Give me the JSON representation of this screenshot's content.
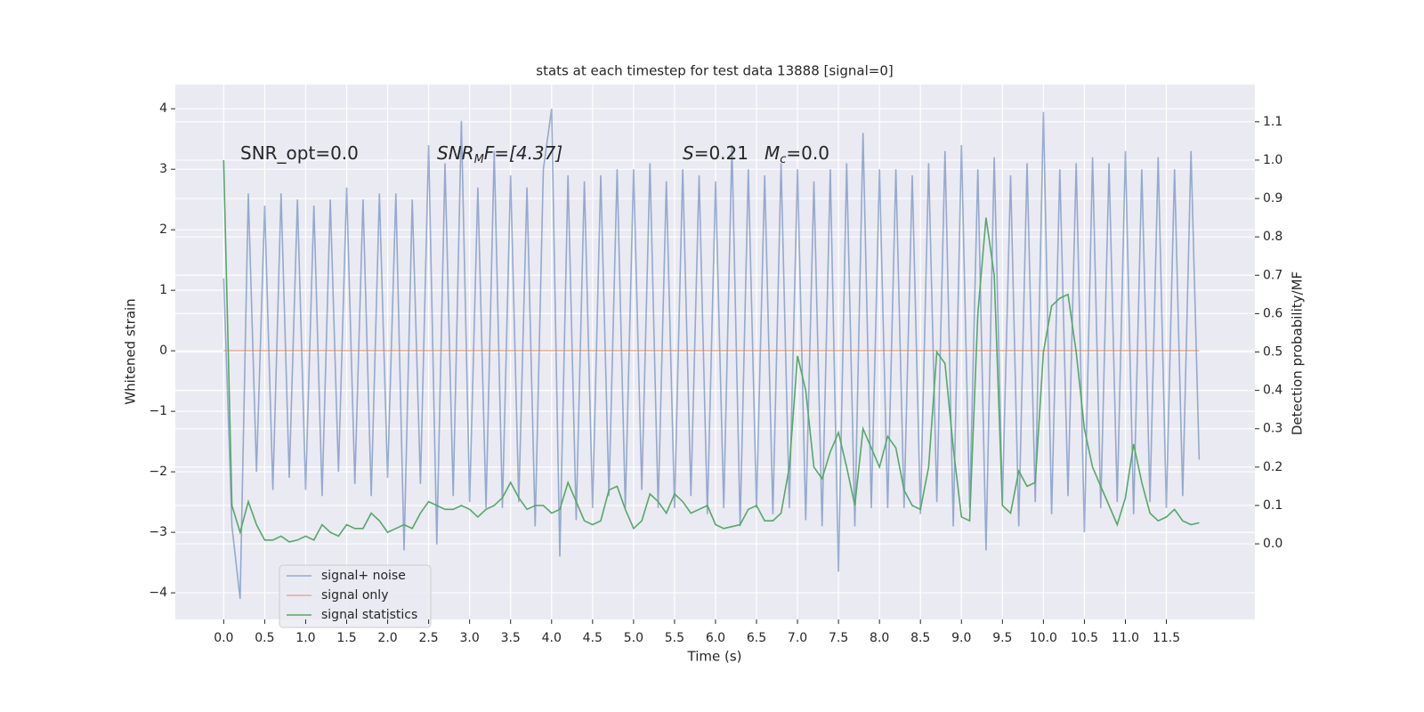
{
  "chart_data": {
    "type": "line",
    "title": "stats at each timestep for test data 13888 [signal=0]",
    "xlabel": "Time (s)",
    "ylabel": "Whitened strain",
    "y2label": "Detection probability/MF",
    "annotations": [
      [
        "SNR_opt=0.0"
      ],
      [
        "SNR",
        "M",
        "F=[4.37]"
      ],
      [
        "S",
        "=0.21",
        "M",
        "c",
        "=0.0"
      ]
    ],
    "xlim": [
      -0.59,
      12.58
    ],
    "ylim": [
      -4.44,
      4.4
    ],
    "y2lim": [
      -0.197,
      1.197
    ],
    "xticks": [
      {
        "value": 0,
        "label": "0.0"
      },
      {
        "value": 0.5,
        "label": "0.5"
      },
      {
        "value": 1,
        "label": "1.0"
      },
      {
        "value": 1.5,
        "label": "1.5"
      },
      {
        "value": 2,
        "label": "2.0"
      },
      {
        "value": 2.5,
        "label": "2.5"
      },
      {
        "value": 3,
        "label": "3.0"
      },
      {
        "value": 3.5,
        "label": "3.5"
      },
      {
        "value": 4,
        "label": "4.0"
      },
      {
        "value": 4.5,
        "label": "4.5"
      },
      {
        "value": 5,
        "label": "5.0"
      },
      {
        "value": 5.5,
        "label": "5.5"
      },
      {
        "value": 6,
        "label": "6.0"
      },
      {
        "value": 6.5,
        "label": "6.5"
      },
      {
        "value": 7,
        "label": "7.0"
      },
      {
        "value": 7.5,
        "label": "7.5"
      },
      {
        "value": 8,
        "label": "8.0"
      },
      {
        "value": 8.5,
        "label": "8.5"
      },
      {
        "value": 9,
        "label": "9.0"
      },
      {
        "value": 9.5,
        "label": "9.5"
      },
      {
        "value": 10,
        "label": "10.0"
      },
      {
        "value": 10.5,
        "label": "10.5"
      },
      {
        "value": 11,
        "label": "11.0"
      },
      {
        "value": 11.5,
        "label": "11.5"
      }
    ],
    "yticks": [
      {
        "value": -4,
        "label": "−4"
      },
      {
        "value": -3,
        "label": "−3"
      },
      {
        "value": -2,
        "label": "−2"
      },
      {
        "value": -1,
        "label": "−1"
      },
      0,
      1,
      2,
      3,
      4
    ],
    "y2ticks": [
      {
        "value": 0,
        "label": "0.0"
      },
      {
        "value": 0.1,
        "label": "0.1"
      },
      {
        "value": 0.2,
        "label": "0.2"
      },
      {
        "value": 0.3,
        "label": "0.3"
      },
      {
        "value": 0.4,
        "label": "0.4"
      },
      {
        "value": 0.5,
        "label": "0.5"
      },
      {
        "value": 0.6,
        "label": "0.6"
      },
      {
        "value": 0.7,
        "label": "0.7"
      },
      {
        "value": 0.8,
        "label": "0.8"
      },
      {
        "value": 0.9,
        "label": "0.9"
      },
      {
        "value": 1,
        "label": "1.0"
      },
      {
        "value": 1.1,
        "label": "1.1"
      }
    ],
    "grid": true,
    "legend": "lower left",
    "series": [
      {
        "name": "signal+ noise",
        "color": "#4c72b0",
        "x": [
          0,
          0.1,
          0.2,
          0.3,
          0.4,
          0.5,
          0.6,
          0.7,
          0.8,
          0.9,
          1,
          1.1,
          1.2,
          1.3,
          1.4,
          1.5,
          1.6,
          1.7,
          1.8,
          1.9,
          2,
          2.1,
          2.2,
          2.3,
          2.4,
          2.5,
          2.6,
          2.7,
          2.8,
          2.9,
          3,
          3.1,
          3.2,
          3.3,
          3.4,
          3.5,
          3.6,
          3.7,
          3.8,
          3.9,
          4,
          4.1,
          4.2,
          4.3,
          4.4,
          4.5,
          4.6,
          4.7,
          4.8,
          4.9,
          5,
          5.1,
          5.2,
          5.3,
          5.4,
          5.5,
          5.6,
          5.7,
          5.8,
          5.9,
          6,
          6.1,
          6.2,
          6.3,
          6.4,
          6.5,
          6.6,
          6.7,
          6.8,
          6.9,
          7,
          7.1,
          7.2,
          7.3,
          7.4,
          7.5,
          7.6,
          7.7,
          7.8,
          7.9,
          8,
          8.1,
          8.2,
          8.3,
          8.4,
          8.5,
          8.6,
          8.7,
          8.8,
          8.9,
          9,
          9.1,
          9.2,
          9.3,
          9.4,
          9.5,
          9.6,
          9.7,
          9.8,
          9.9,
          10,
          10.1,
          10.2,
          10.3,
          10.4,
          10.5,
          10.6,
          10.7,
          10.8,
          10.9,
          11,
          11.1,
          11.2,
          11.3,
          11.4,
          11.5,
          11.6,
          11.7,
          11.8,
          11.9
        ],
        "values": [
          1.2,
          -2.9,
          -4.1,
          2.6,
          -2.0,
          2.4,
          -2.3,
          2.6,
          -2.1,
          2.5,
          -2.3,
          2.4,
          -2.4,
          2.5,
          -2.0,
          2.7,
          -2.2,
          2.5,
          -2.4,
          2.6,
          -2.1,
          2.6,
          -3.3,
          2.5,
          -2.2,
          3.4,
          -3.2,
          3.1,
          -2.4,
          3.8,
          -2.5,
          2.7,
          -2.6,
          3.3,
          -2.6,
          2.9,
          -2.5,
          2.7,
          -2.9,
          3.0,
          4.0,
          -3.4,
          2.9,
          -2.8,
          2.8,
          -2.6,
          2.9,
          -2.4,
          3.0,
          -2.6,
          3.0,
          -2.3,
          3.1,
          -2.6,
          2.8,
          -2.6,
          3.0,
          -2.4,
          2.9,
          -2.7,
          2.8,
          -2.6,
          3.4,
          -2.9,
          3.0,
          -2.6,
          2.9,
          -2.7,
          3.1,
          -2.6,
          3.0,
          -2.8,
          2.8,
          -2.9,
          3.0,
          -3.65,
          3.1,
          -2.9,
          3.6,
          -2.6,
          3.0,
          -2.6,
          3.0,
          -2.6,
          2.9,
          -2.7,
          3.1,
          -2.5,
          3.3,
          -2.9,
          3.4,
          -2.6,
          3.0,
          -3.3,
          3.2,
          -2.5,
          2.9,
          -2.9,
          3.1,
          -2.5,
          3.95,
          -2.7,
          3.0,
          -2.4,
          3.1,
          -3.0,
          3.2,
          -2.6,
          3.1,
          -2.5,
          3.3,
          -2.7,
          3.0,
          -2.5,
          3.2,
          -2.6,
          3.0,
          -2.4,
          3.3,
          -1.8
        ]
      },
      {
        "name": "signal only",
        "color": "#dd8452",
        "x": [
          0,
          11.9
        ],
        "values": [
          0,
          0
        ]
      },
      {
        "name": "signal statistics",
        "color": "#55a868",
        "axis": "y2",
        "x": [
          0,
          0.1,
          0.2,
          0.3,
          0.4,
          0.5,
          0.6,
          0.7,
          0.8,
          0.9,
          1,
          1.1,
          1.2,
          1.3,
          1.4,
          1.5,
          1.6,
          1.7,
          1.8,
          1.9,
          2,
          2.1,
          2.2,
          2.3,
          2.4,
          2.5,
          2.6,
          2.7,
          2.8,
          2.9,
          3,
          3.1,
          3.2,
          3.3,
          3.4,
          3.5,
          3.6,
          3.7,
          3.8,
          3.9,
          4,
          4.1,
          4.2,
          4.3,
          4.4,
          4.5,
          4.6,
          4.7,
          4.8,
          4.9,
          5,
          5.1,
          5.2,
          5.3,
          5.4,
          5.5,
          5.6,
          5.7,
          5.8,
          5.9,
          6,
          6.1,
          6.2,
          6.3,
          6.4,
          6.5,
          6.6,
          6.7,
          6.8,
          6.9,
          7,
          7.1,
          7.2,
          7.3,
          7.4,
          7.5,
          7.6,
          7.7,
          7.8,
          7.9,
          8,
          8.1,
          8.2,
          8.3,
          8.4,
          8.5,
          8.6,
          8.7,
          8.8,
          8.9,
          9,
          9.1,
          9.2,
          9.3,
          9.4,
          9.5,
          9.6,
          9.7,
          9.8,
          9.9,
          10,
          10.1,
          10.2,
          10.3,
          10.4,
          10.5,
          10.6,
          10.7,
          10.8,
          10.9,
          11,
          11.1,
          11.2,
          11.3,
          11.4,
          11.5,
          11.6,
          11.7,
          11.8,
          11.9
        ],
        "values": [
          1.0,
          0.1,
          0.03,
          0.11,
          0.05,
          0.01,
          0.01,
          0.02,
          0.005,
          0.01,
          0.02,
          0.01,
          0.05,
          0.03,
          0.02,
          0.05,
          0.04,
          0.04,
          0.08,
          0.06,
          0.03,
          0.04,
          0.05,
          0.04,
          0.08,
          0.11,
          0.1,
          0.09,
          0.09,
          0.1,
          0.09,
          0.07,
          0.09,
          0.1,
          0.12,
          0.16,
          0.12,
          0.09,
          0.1,
          0.1,
          0.08,
          0.09,
          0.16,
          0.11,
          0.06,
          0.05,
          0.06,
          0.14,
          0.15,
          0.09,
          0.04,
          0.06,
          0.13,
          0.11,
          0.08,
          0.13,
          0.11,
          0.08,
          0.09,
          0.1,
          0.05,
          0.04,
          0.045,
          0.05,
          0.09,
          0.1,
          0.06,
          0.06,
          0.08,
          0.2,
          0.49,
          0.4,
          0.2,
          0.17,
          0.24,
          0.29,
          0.2,
          0.1,
          0.3,
          0.25,
          0.2,
          0.28,
          0.25,
          0.14,
          0.1,
          0.09,
          0.2,
          0.5,
          0.47,
          0.25,
          0.07,
          0.06,
          0.6,
          0.85,
          0.7,
          0.1,
          0.08,
          0.19,
          0.15,
          0.16,
          0.5,
          0.62,
          0.64,
          0.65,
          0.5,
          0.3,
          0.2,
          0.15,
          0.1,
          0.05,
          0.12,
          0.26,
          0.16,
          0.08,
          0.06,
          0.07,
          0.09,
          0.06,
          0.05,
          0.055
        ]
      }
    ]
  }
}
